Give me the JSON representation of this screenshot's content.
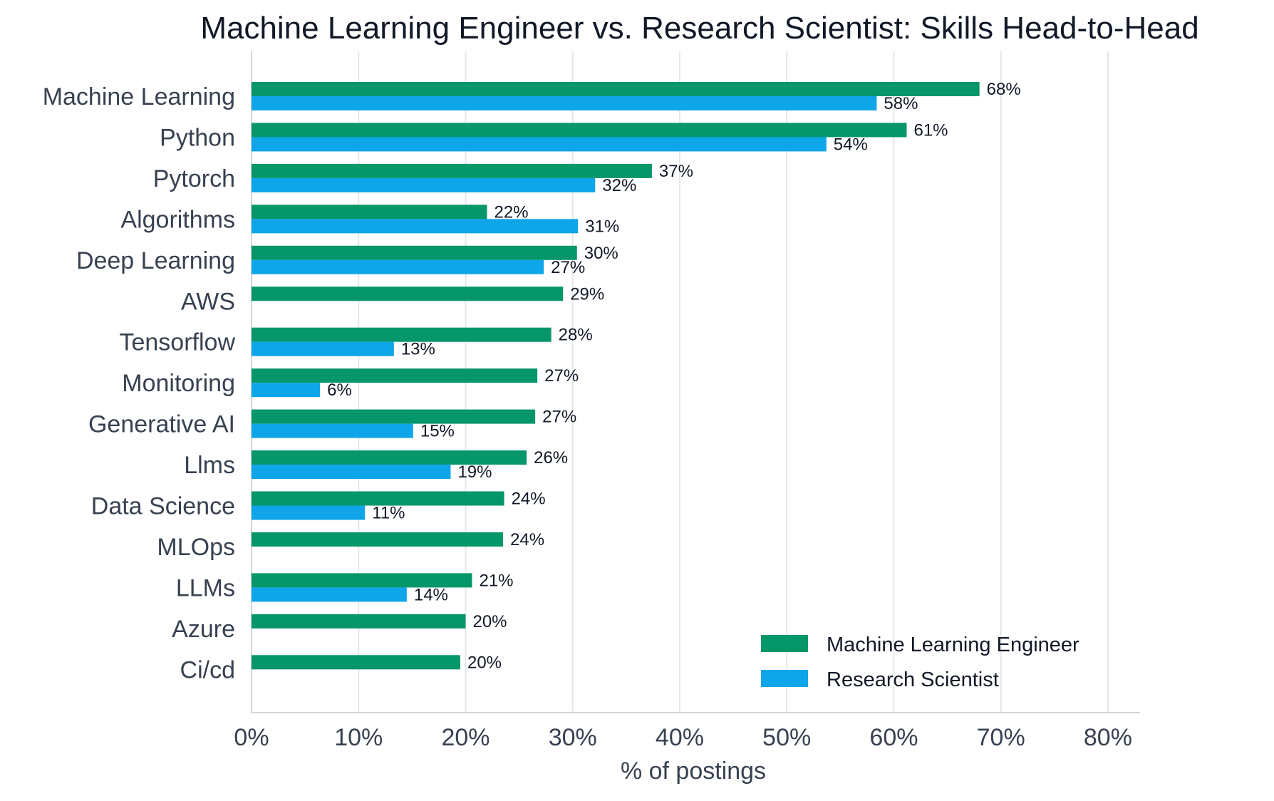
{
  "chart_data": {
    "type": "bar",
    "orientation": "horizontal",
    "title": "Machine Learning Engineer vs. Research Scientist: Skills Head-to-Head",
    "xlabel": "% of postings",
    "ylabel": "",
    "xlim": [
      0,
      83
    ],
    "xticks": [
      0,
      10,
      20,
      30,
      40,
      50,
      60,
      70,
      80
    ],
    "xtick_labels": [
      "0%",
      "10%",
      "20%",
      "30%",
      "40%",
      "50%",
      "60%",
      "70%",
      "80%"
    ],
    "grid": "vertical",
    "legend_position": "bottom-right",
    "categories": [
      "Machine Learning",
      "Python",
      "Pytorch",
      "Algorithms",
      "Deep Learning",
      "AWS",
      "Tensorflow",
      "Monitoring",
      "Generative AI",
      "Llms",
      "Data Science",
      "MLOps",
      "LLMs",
      "Azure",
      "Ci/cd"
    ],
    "series": [
      {
        "name": "Machine Learning Engineer",
        "color": "#059669",
        "values": [
          68.0,
          61.2,
          37.4,
          22.0,
          30.4,
          29.1,
          28.0,
          26.7,
          26.5,
          25.7,
          23.6,
          23.5,
          20.6,
          20.0,
          19.5
        ],
        "labels": [
          "68%",
          "61%",
          "37%",
          "22%",
          "30%",
          "29%",
          "28%",
          "27%",
          "27%",
          "26%",
          "24%",
          "24%",
          "21%",
          "20%",
          "20%"
        ]
      },
      {
        "name": "Research Scientist",
        "color": "#0EA5E9",
        "values": [
          58.4,
          53.7,
          32.1,
          30.5,
          27.3,
          null,
          13.3,
          6.4,
          15.1,
          18.6,
          10.6,
          null,
          14.5,
          null,
          null
        ],
        "labels": [
          "58%",
          "54%",
          "32%",
          "31%",
          "27%",
          "",
          "13%",
          "6%",
          "15%",
          "19%",
          "11%",
          "",
          "14%",
          "",
          ""
        ]
      }
    ]
  },
  "colors": {
    "text": "#1F2937",
    "axis_text": "#374151",
    "grid": "#E5E7EB",
    "axis_line": "#D1D5DB"
  }
}
